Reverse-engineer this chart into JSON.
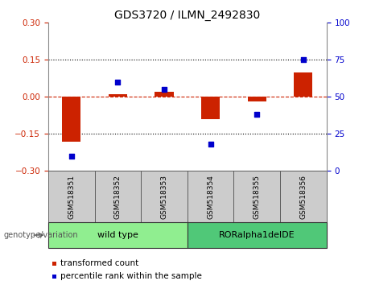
{
  "title": "GDS3720 / ILMN_2492830",
  "samples": [
    "GSM518351",
    "GSM518352",
    "GSM518353",
    "GSM518354",
    "GSM518355",
    "GSM518356"
  ],
  "red_bars": [
    -0.18,
    0.01,
    0.02,
    -0.09,
    -0.02,
    0.1
  ],
  "blue_dots": [
    10,
    60,
    55,
    18,
    38,
    75
  ],
  "ylim_left": [
    -0.3,
    0.3
  ],
  "ylim_right": [
    0,
    100
  ],
  "yticks_left": [
    -0.3,
    -0.15,
    0,
    0.15,
    0.3
  ],
  "yticks_right": [
    0,
    25,
    50,
    75,
    100
  ],
  "hlines": [
    0.15,
    -0.15
  ],
  "genotype_groups": [
    {
      "label": "wild type",
      "start": 0,
      "end": 3,
      "color": "#90EE90"
    },
    {
      "label": "RORalpha1delDE",
      "start": 3,
      "end": 6,
      "color": "#50C878"
    }
  ],
  "genotype_label": "genotype/variation",
  "bar_color": "#CC2200",
  "dot_color": "#0000CC",
  "zero_line_color": "#CC2200",
  "hline_color": "#000000",
  "sample_box_color": "#CCCCCC",
  "legend_red_label": "transformed count",
  "legend_blue_label": "percentile rank within the sample",
  "title_fontsize": 10,
  "tick_fontsize": 7.5,
  "label_fontsize": 7.5,
  "bar_width": 0.4
}
